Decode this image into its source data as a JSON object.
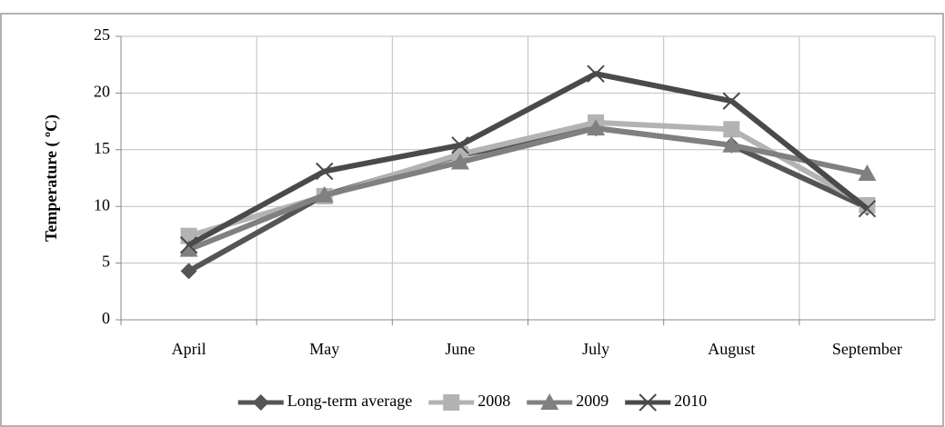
{
  "chart_data": {
    "type": "line",
    "y_label": "Temperature ( ºC)",
    "categories": [
      "April",
      "May",
      "June",
      "July",
      "August",
      "September"
    ],
    "series": [
      {
        "name": "Long-term average",
        "color": "#555555",
        "marker": "diamond",
        "values": [
          4.3,
          11.0,
          14.5,
          16.9,
          15.4,
          9.9
        ]
      },
      {
        "name": "2008",
        "color": "#b3b3b3",
        "marker": "square",
        "values": [
          7.4,
          10.9,
          14.6,
          17.4,
          16.8,
          10.1
        ]
      },
      {
        "name": "2009",
        "color": "#808080",
        "marker": "triangle",
        "values": [
          6.2,
          11.0,
          13.9,
          16.9,
          15.4,
          12.9
        ]
      },
      {
        "name": "2010",
        "color": "#4a4a4a",
        "marker": "x",
        "values": [
          6.6,
          13.1,
          15.4,
          21.7,
          19.3,
          9.8
        ]
      }
    ],
    "ylim": [
      0,
      25
    ],
    "yticks": [
      0,
      5,
      10,
      15,
      20,
      25
    ],
    "grid": true,
    "legend": "bottom"
  }
}
